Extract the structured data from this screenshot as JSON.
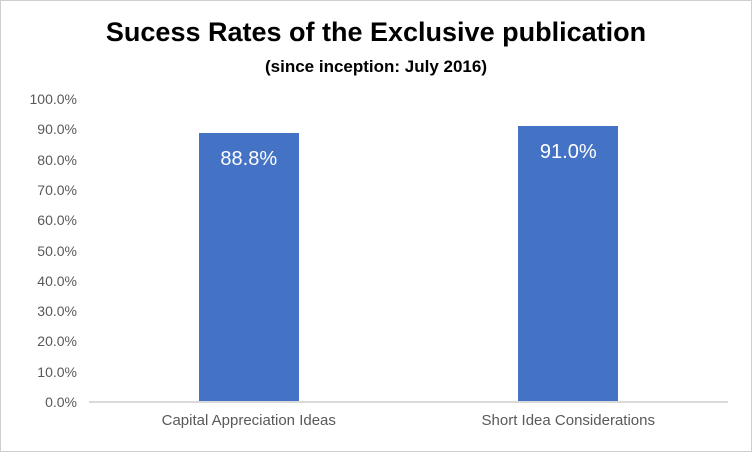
{
  "chart_data": {
    "type": "bar",
    "title": "Sucess Rates of the Exclusive publication",
    "subtitle": "(since inception: July 2016)",
    "categories": [
      "Capital Appreciation Ideas",
      "Short Idea Considerations"
    ],
    "values": [
      88.8,
      91.0
    ],
    "value_labels": [
      "88.8%",
      "91.0%"
    ],
    "y_ticks": [
      "100.0%",
      "90.0%",
      "80.0%",
      "70.0%",
      "60.0%",
      "50.0%",
      "40.0%",
      "30.0%",
      "20.0%",
      "10.0%",
      "0.0%"
    ],
    "ylim": [
      0,
      100
    ],
    "grid": false,
    "legend": false,
    "xlabel": "",
    "ylabel": "",
    "bar_color": "#4472C4",
    "bar_label_color": "#FFFFFF",
    "axis_line_color": "#D9D9D9",
    "tick_label_color": "#595959",
    "title_color": "#000000"
  }
}
